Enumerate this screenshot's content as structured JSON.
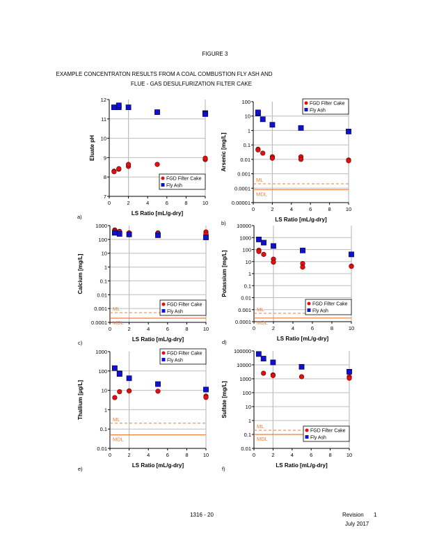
{
  "header": {
    "figure": "FIGURE 3",
    "title_line1": "EXAMPLE CONCENTRATON RESULTS FROM A COAL COMBUSTION FLY ASH AND",
    "title_line2": "FLUE    - GAS DESULFURIZATION FILTER CAKE"
  },
  "footer": {
    "method": "1316    - 20",
    "revision_label": "Revision",
    "revision_number": "1",
    "date": "July 2017"
  },
  "colors": {
    "fgd": "#e01010",
    "fly": "#1010d0",
    "ml": "#f07a3a"
  },
  "chart_data": [
    {
      "type": "scatter",
      "panel": "a)",
      "xlabel": "LS Ratio  [mL/g-dry]",
      "ylabel": "Eluate pH",
      "scale": "linear",
      "xlim": [
        0,
        10
      ],
      "ylim": [
        7,
        12
      ],
      "xticks": [
        "0",
        "2",
        "4",
        "6",
        "8",
        "10"
      ],
      "yticks": [
        "7",
        "8",
        "9",
        "10",
        "11",
        "12"
      ],
      "legend": "bottom-right",
      "series": [
        {
          "name": "FGD Filter Cake",
          "marker": "circle",
          "points": [
            [
              0.5,
              8.3
            ],
            [
              0.5,
              8.27
            ],
            [
              1,
              8.4
            ],
            [
              1,
              8.43
            ],
            [
              2,
              8.55
            ],
            [
              2,
              8.65
            ],
            [
              5,
              8.65
            ],
            [
              10,
              8.9
            ],
            [
              10,
              8.97
            ]
          ]
        },
        {
          "name": "Fly Ash",
          "marker": "square",
          "points": [
            [
              0.5,
              11.6
            ],
            [
              1,
              11.6
            ],
            [
              1,
              11.7
            ],
            [
              2,
              11.6
            ],
            [
              5,
              11.35
            ],
            [
              10,
              11.3
            ],
            [
              10,
              11.25
            ]
          ]
        }
      ]
    },
    {
      "type": "scatter",
      "panel": "b)",
      "xlabel": "LS Ratio  [mL/g-dry]",
      "ylabel": "Arsenic  [mg/L]",
      "scale": "log",
      "xlim": [
        0,
        10
      ],
      "ylim": [
        1e-05,
        100
      ],
      "xticks": [
        "0",
        "2",
        "4",
        "6",
        "8",
        "10"
      ],
      "yticks": [
        "0.00001",
        "0.0001",
        "0.001",
        "0.01",
        "0.1",
        "1",
        "10",
        "100"
      ],
      "legend": "top-right",
      "ml": {
        "label": "ML",
        "value": 0.0002
      },
      "mdl": {
        "label": "MDL",
        "value": 8e-05
      },
      "series": [
        {
          "name": "FGD Filter Cake",
          "marker": "circle",
          "points": [
            [
              0.5,
              0.05
            ],
            [
              0.5,
              0.045
            ],
            [
              1,
              0.027
            ],
            [
              2,
              0.015
            ],
            [
              2,
              0.012
            ],
            [
              5,
              0.015
            ],
            [
              5,
              0.01
            ],
            [
              10,
              0.009
            ],
            [
              10,
              0.008
            ]
          ]
        },
        {
          "name": "Fly Ash",
          "marker": "square",
          "points": [
            [
              0.5,
              15
            ],
            [
              0.5,
              18
            ],
            [
              1,
              6
            ],
            [
              2,
              2.5
            ],
            [
              5,
              1.5
            ],
            [
              10,
              0.85
            ]
          ]
        }
      ]
    },
    {
      "type": "scatter",
      "panel": "c)",
      "xlabel": "LS Ratio  [mL/g-dry]",
      "ylabel": "Calcium  [mg/L]",
      "scale": "log",
      "xlim": [
        0,
        10
      ],
      "ylim": [
        0.0001,
        1000
      ],
      "xticks": [
        "0",
        "2",
        "4",
        "6",
        "8",
        "10"
      ],
      "yticks": [
        "0.0001",
        "0.001",
        "0.01",
        "0.1",
        "1",
        "10",
        "100",
        "1000"
      ],
      "legend": "bottom-right",
      "ml": {
        "label": "ML",
        "value": 0.0005
      },
      "mdl": {
        "label": "MDL",
        "value": 0.0002
      },
      "series": [
        {
          "name": "FGD Filter Cake",
          "marker": "circle",
          "points": [
            [
              0.5,
              480
            ],
            [
              0.5,
              420
            ],
            [
              1,
              380
            ],
            [
              1,
              350
            ],
            [
              2,
              300
            ],
            [
              5,
              300
            ],
            [
              5,
              260
            ],
            [
              10,
              350
            ],
            [
              10,
              250
            ]
          ]
        },
        {
          "name": "Fly Ash",
          "marker": "square",
          "points": [
            [
              0.5,
              300
            ],
            [
              1,
              250
            ],
            [
              2,
              230
            ],
            [
              5,
              200
            ],
            [
              10,
              140
            ]
          ]
        }
      ]
    },
    {
      "type": "scatter",
      "panel": "d)",
      "xlabel": "LS Ratio  [mL/g-dry]",
      "ylabel": "Potassium  [mg/L]",
      "scale": "log",
      "xlim": [
        0,
        10
      ],
      "ylim": [
        0.0001,
        10000
      ],
      "xticks": [
        "0",
        "2",
        "4",
        "6",
        "8",
        "10"
      ],
      "yticks": [
        "0.0001",
        "0.001",
        "0.01",
        "0.1",
        "1",
        "10",
        "100",
        "1000",
        "10000"
      ],
      "legend": "bottom-right",
      "ml": {
        "label": "ML",
        "value": 0.0005
      },
      "mdl": {
        "label": "MDL",
        "value": 0.0002
      },
      "series": [
        {
          "name": "FGD Filter Cake",
          "marker": "circle",
          "points": [
            [
              0.5,
              90
            ],
            [
              0.5,
              70
            ],
            [
              1,
              40
            ],
            [
              2,
              16
            ],
            [
              2,
              9
            ],
            [
              5,
              7
            ],
            [
              5,
              3.5
            ],
            [
              10,
              4.2
            ],
            [
              10,
              4
            ]
          ]
        },
        {
          "name": "Fly Ash",
          "marker": "square",
          "points": [
            [
              0.5,
              700
            ],
            [
              1,
              380
            ],
            [
              2,
              200
            ],
            [
              5,
              85
            ],
            [
              10,
              40
            ]
          ]
        }
      ]
    },
    {
      "type": "scatter",
      "panel": "e)",
      "xlabel": "LS Ratio  [mL/g-dry]",
      "ylabel": "Thallium [µg/L]",
      "scale": "log",
      "xlim": [
        0,
        10
      ],
      "ylim": [
        0.01,
        1000
      ],
      "xticks": [
        "0",
        "2",
        "4",
        "6",
        "8",
        "10"
      ],
      "yticks": [
        "0.01",
        "0.1",
        "1",
        "10",
        "100",
        "1000"
      ],
      "legend": "top-right",
      "ml": {
        "label": "ML",
        "value": 0.2
      },
      "mdl": {
        "label": "MDL",
        "value": 0.05
      },
      "series": [
        {
          "name": "FGD Filter Cake",
          "marker": "circle",
          "points": [
            [
              0.5,
              4.2
            ],
            [
              1,
              8.5
            ],
            [
              2,
              9.3
            ],
            [
              5,
              9
            ],
            [
              10,
              5
            ],
            [
              10,
              4.3
            ]
          ]
        },
        {
          "name": "Fly Ash",
          "marker": "square",
          "points": [
            [
              0.5,
              140
            ],
            [
              1,
              75
            ],
            [
              1,
              70
            ],
            [
              2,
              42
            ],
            [
              5,
              21
            ],
            [
              10,
              11
            ]
          ]
        }
      ]
    },
    {
      "type": "scatter",
      "panel": "f)",
      "xlabel": "LS Ratio  [mL/g-dry]",
      "ylabel": "Sulfate  [mg/L]",
      "scale": "log",
      "xlim": [
        0,
        10
      ],
      "ylim": [
        0.01,
        100000
      ],
      "xticks": [
        "0",
        "2",
        "4",
        "6",
        "8",
        "10"
      ],
      "yticks": [
        "0.01",
        "0.1",
        "1",
        "10",
        "100",
        "1000",
        "10000",
        "100000"
      ],
      "legend": "bottom-right",
      "ml": {
        "label": "ML",
        "value": 0.2
      },
      "mdl": {
        "label": "MDL",
        "value": 0.1
      },
      "series": [
        {
          "name": "FGD Filter Cake",
          "marker": "circle",
          "points": [
            [
              1,
              2500
            ],
            [
              2,
              1900
            ],
            [
              2,
              1700
            ],
            [
              5,
              1400
            ],
            [
              10,
              1400
            ],
            [
              10,
              1100
            ]
          ]
        },
        {
          "name": "Fly Ash",
          "marker": "square",
          "points": [
            [
              0.5,
              60000
            ],
            [
              1,
              28000
            ],
            [
              2,
              15000
            ],
            [
              5,
              7200
            ],
            [
              10,
              3200
            ]
          ]
        }
      ]
    }
  ]
}
